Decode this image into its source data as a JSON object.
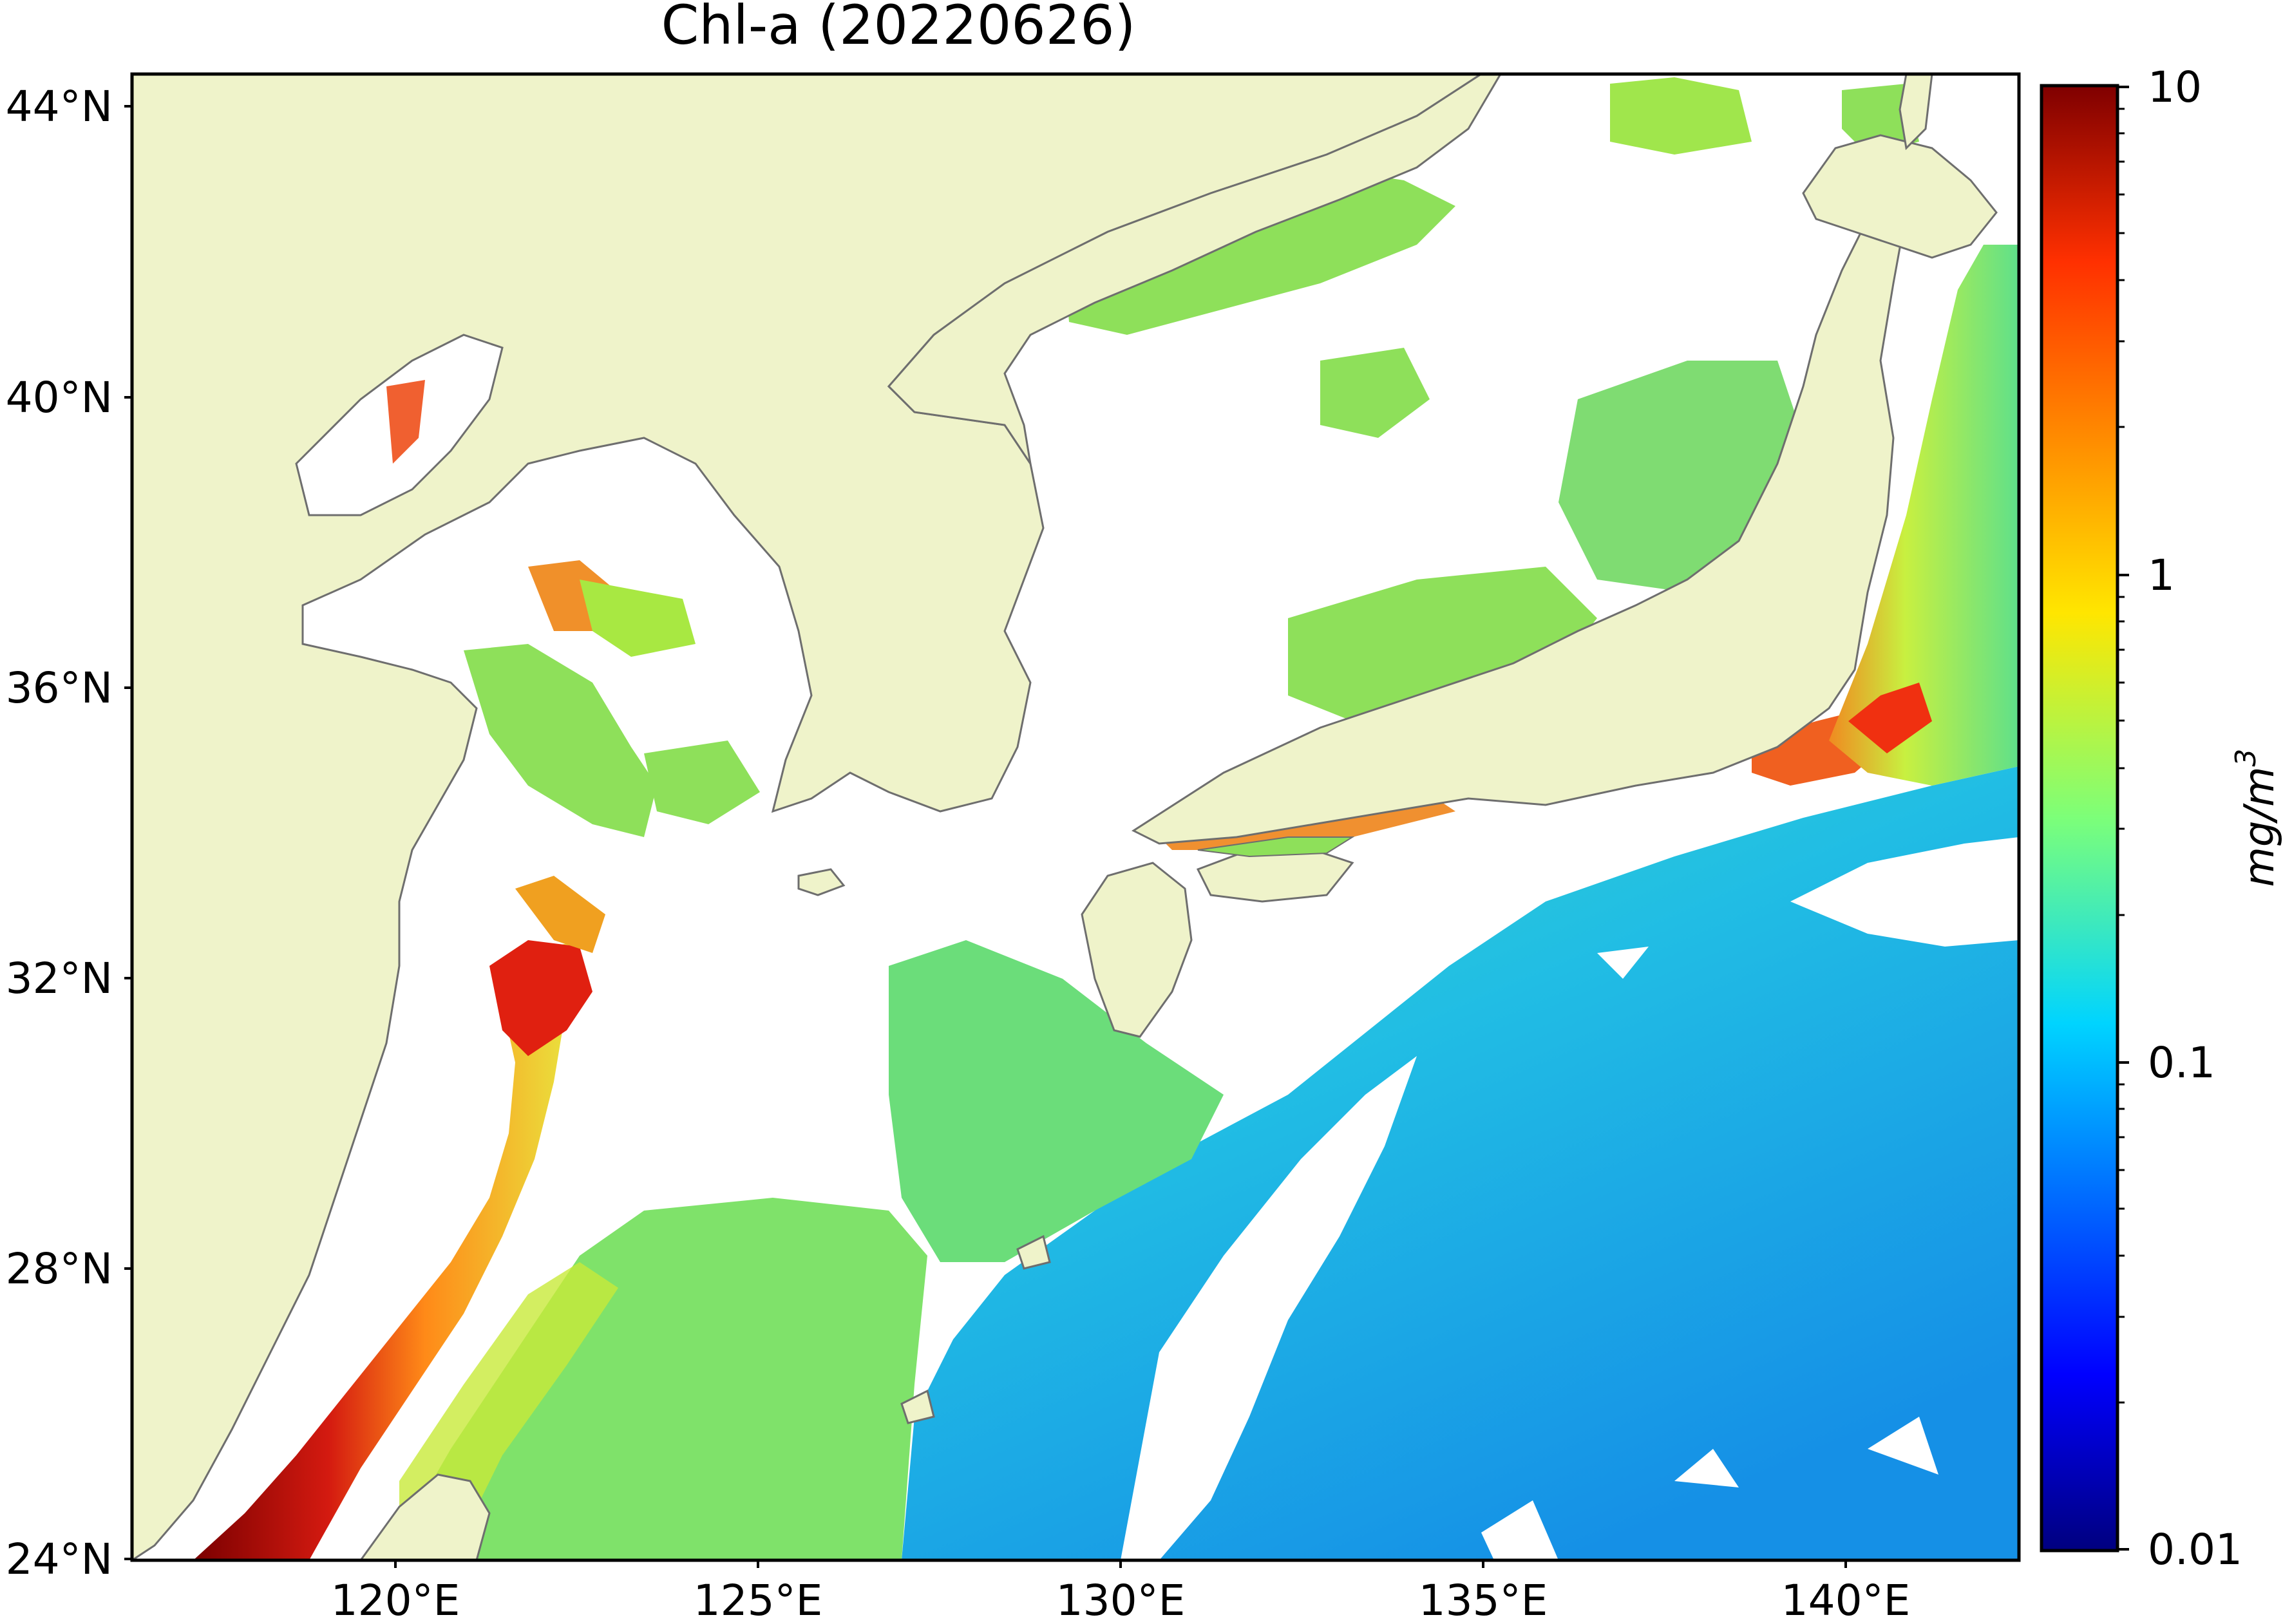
{
  "title": "Chl-a (20220626)",
  "axes": {
    "lon_ticks": [
      "120°E",
      "125°E",
      "130°E",
      "135°E",
      "140°E"
    ],
    "lat_ticks": [
      "44°N",
      "40°N",
      "36°N",
      "32°N",
      "28°N",
      "24°N"
    ]
  },
  "colorbar": {
    "tick_labels": [
      "10",
      "1",
      "0.1",
      "0.01"
    ],
    "unit_base": "mg/m",
    "unit_exp": "3",
    "scale": "log",
    "range": [
      0.01,
      10
    ],
    "colormap": "jet"
  },
  "colors": {
    "land": "#EFF3CA",
    "no_data": "#FFFFFF",
    "coastline": "#6E6E6E",
    "very_high": "#8B0000",
    "high": "#E8401C",
    "medium": "#F0E820",
    "low": "#8EE05A",
    "lower": "#2ED4C8",
    "lowest": "#1B7FE0"
  }
}
